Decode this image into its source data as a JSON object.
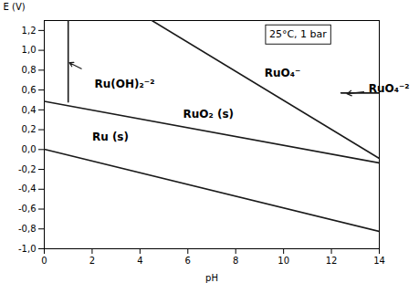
{
  "chart_data": {
    "type": "line",
    "xlabel": "pH",
    "ylabel": "E (V)",
    "color": "#1a1a1a",
    "xlim": [
      0,
      14
    ],
    "ylim": [
      -1.0,
      1.3
    ],
    "xticks": [
      0,
      2,
      4,
      6,
      8,
      10,
      12,
      14
    ],
    "yticks": [
      {
        "value": -1.0,
        "label": "-1,0"
      },
      {
        "value": -0.8,
        "label": "-0,8"
      },
      {
        "value": -0.6,
        "label": "-0,6"
      },
      {
        "value": -0.4,
        "label": "-0,4"
      },
      {
        "value": -0.2,
        "label": "-0,2"
      },
      {
        "value": 0.0,
        "label": "0,0"
      },
      {
        "value": 0.2,
        "label": "0,2"
      },
      {
        "value": 0.4,
        "label": "0,4"
      },
      {
        "value": 0.6,
        "label": "0,6"
      },
      {
        "value": 0.8,
        "label": "0,8"
      },
      {
        "value": 1.0,
        "label": "1,0"
      },
      {
        "value": 1.2,
        "label": "1,2"
      }
    ],
    "series": [
      {
        "x": [
          1.0,
          1.0
        ],
        "values": [
          0.48,
          1.3
        ]
      },
      {
        "x": [
          4.5,
          14.0
        ],
        "values": [
          1.3,
          -0.09
        ]
      },
      {
        "x": [
          12.4,
          14.0
        ],
        "values": [
          0.57,
          0.57
        ]
      },
      {
        "x": [
          0.0,
          14.0
        ],
        "values": [
          0.485,
          -0.135
        ]
      },
      {
        "x": [
          0.0,
          14.0
        ],
        "values": [
          0.003,
          -0.825
        ]
      }
    ],
    "annotations": [
      {
        "text": "Ru(OH)₂⁻²",
        "x": 2.1,
        "y": 0.66
      },
      {
        "text": "RuO₄⁻",
        "x": 9.2,
        "y": 0.77
      },
      {
        "text": "RuO₄⁻²",
        "x": 13.55,
        "y": 0.615
      },
      {
        "text": "RuO₂ (s)",
        "x": 5.8,
        "y": 0.36
      },
      {
        "text": "Ru (s)",
        "x": 2.0,
        "y": 0.13
      }
    ],
    "boxed_annotations": [
      {
        "text": "25°C, 1 bar",
        "x": 10.6,
        "y": 1.16
      }
    ],
    "arrows": [
      {
        "x": [
          1.55,
          1.05
        ],
        "values": [
          0.815,
          0.875
        ]
      },
      {
        "x": [
          13.35,
          12.65
        ],
        "values": [
          0.582,
          0.563
        ]
      }
    ]
  }
}
